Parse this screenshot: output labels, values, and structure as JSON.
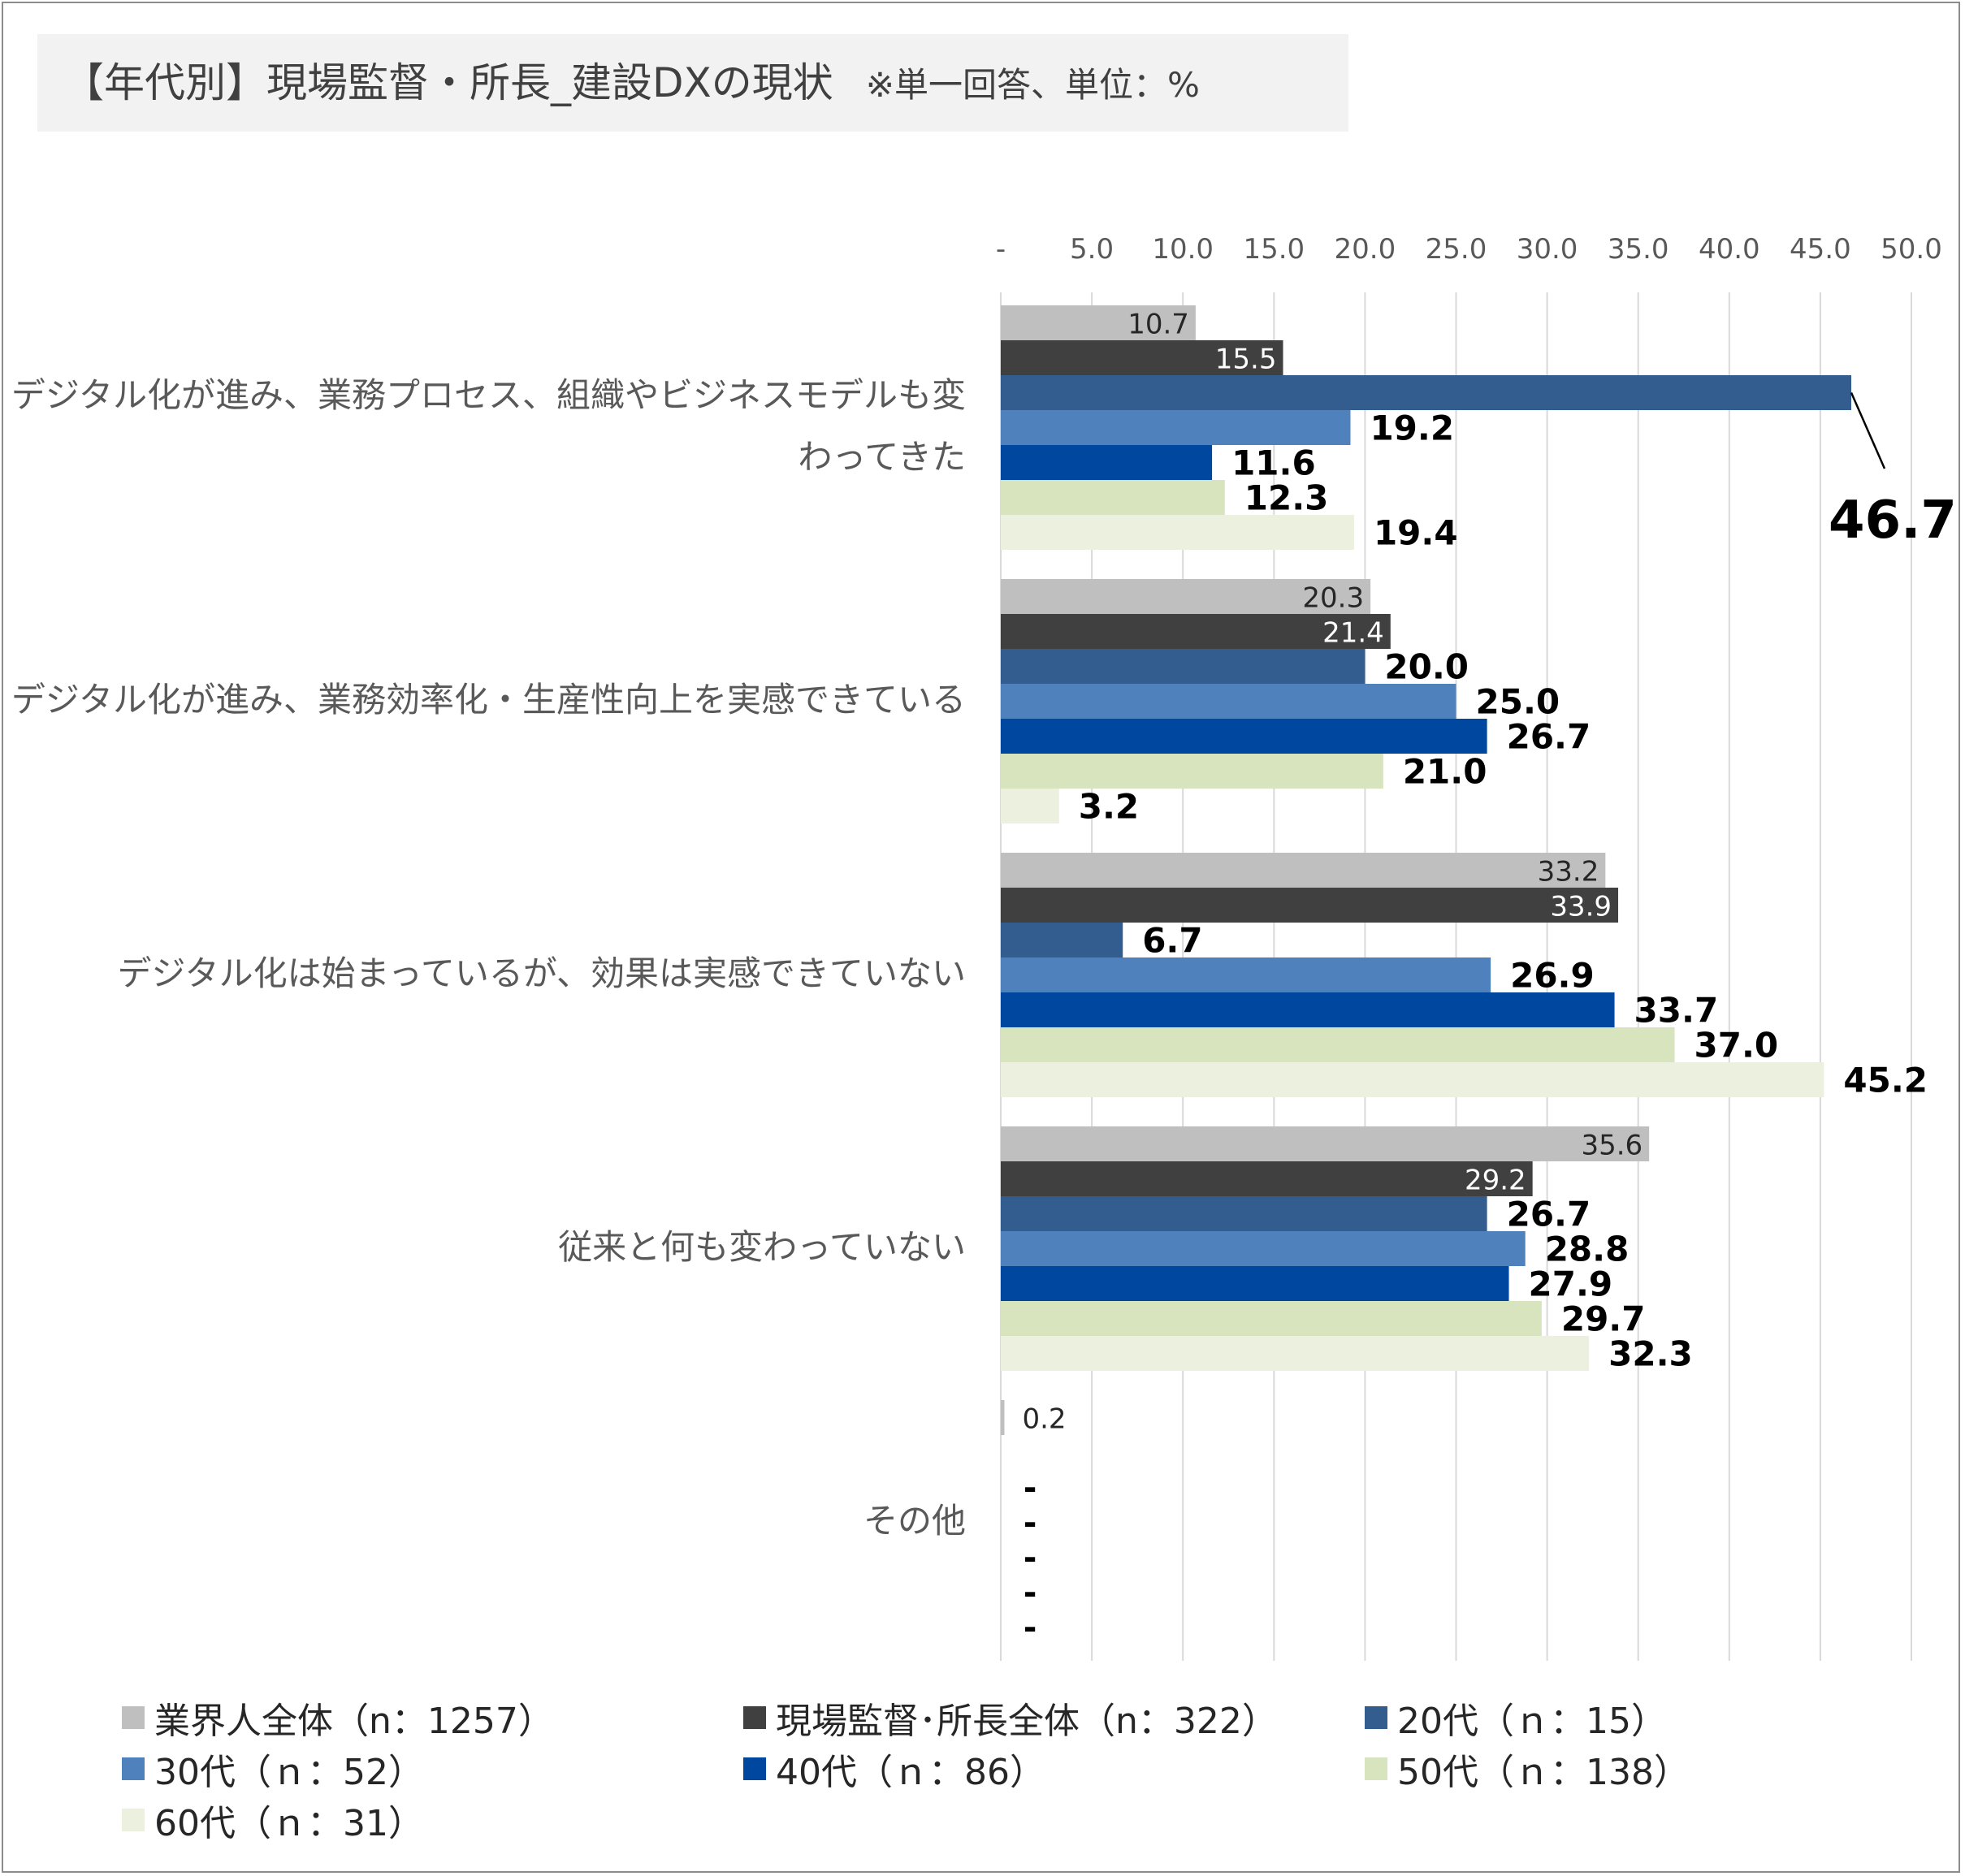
{
  "title": "【年代別】現場監督・所長_建設DXの現状",
  "subtitle": "※単一回答、単位：%",
  "chart_data": {
    "type": "bar",
    "orientation": "horizontal",
    "xlim": [
      0,
      50
    ],
    "x_ticks": [
      "-",
      "5.0",
      "10.0",
      "15.0",
      "20.0",
      "25.0",
      "30.0",
      "35.0",
      "40.0",
      "45.0",
      "50.0"
    ],
    "x_tick_values": [
      0,
      5,
      10,
      15,
      20,
      25,
      30,
      35,
      40,
      45,
      50
    ],
    "grid": "vertical",
    "legend_position": "bottom",
    "categories": [
      "デジタル化が進み、業務プロセス、組織やビジネスモデルも変わってきた",
      "デジタル化が進み、業務効率化・生産性向上を実感できている",
      "デジタル化は始まっているが、効果は実感できていない",
      "従来と何も変わっていない",
      "その他"
    ],
    "series": [
      {
        "name": "業界人全体（n：1257）",
        "color": "#bfbfbf",
        "label_style": "inside",
        "values": [
          10.7,
          20.3,
          33.2,
          35.6,
          0.2
        ],
        "labels": [
          "10.7",
          "20.3",
          "33.2",
          "35.6",
          "0.2"
        ]
      },
      {
        "name": "現場監督･所長全体（n：322）",
        "color": "#404040",
        "label_style": "inside",
        "values": [
          15.5,
          21.4,
          33.9,
          29.2,
          0
        ],
        "labels": [
          "15.5",
          "21.4",
          "33.9",
          "29.2",
          ""
        ]
      },
      {
        "name": "20代（ｎ：15）",
        "color": "#335c8f",
        "label_style": "outside",
        "values": [
          46.7,
          20.0,
          6.7,
          26.7,
          0
        ],
        "labels": [
          "46.7",
          "20.0",
          "6.7",
          "26.7",
          "-"
        ]
      },
      {
        "name": "30代（ｎ：52）",
        "color": "#4f81bd",
        "label_style": "outside",
        "values": [
          19.2,
          25.0,
          26.9,
          28.8,
          0
        ],
        "labels": [
          "19.2",
          "25.0",
          "26.9",
          "28.8",
          "-"
        ]
      },
      {
        "name": "40代（ｎ：86）",
        "color": "#0047a0",
        "label_style": "outside",
        "values": [
          11.6,
          26.7,
          33.7,
          27.9,
          0
        ],
        "labels": [
          "11.6",
          "26.7",
          "33.7",
          "27.9",
          "-"
        ]
      },
      {
        "name": "50代（ｎ：138）",
        "color": "#d7e4bd",
        "label_style": "outside",
        "values": [
          12.3,
          21.0,
          37.0,
          29.7,
          0
        ],
        "labels": [
          "12.3",
          "21.0",
          "37.0",
          "29.7",
          "-"
        ]
      },
      {
        "name": "60代（ｎ：31）",
        "color": "#ebf1de",
        "label_style": "outside",
        "values": [
          19.4,
          3.2,
          45.2,
          32.3,
          0
        ],
        "labels": [
          "19.4",
          "3.2",
          "45.2",
          "32.3",
          "-"
        ]
      }
    ]
  }
}
